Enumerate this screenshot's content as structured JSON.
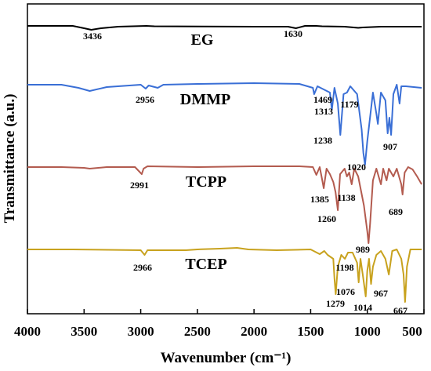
{
  "chart_data": {
    "type": "line",
    "xlabel": "Wavenumber (cm⁻¹)",
    "ylabel": "Transmittance (a.u.)",
    "xlim": [
      4000,
      500
    ],
    "x_reversed": true,
    "x_ticks": [
      4000,
      3500,
      3000,
      2500,
      2000,
      1500,
      1000,
      500
    ],
    "y_ticks": "none",
    "grid": false,
    "series": [
      {
        "name": "EG",
        "color": "#000000",
        "points": [
          [
            4000,
            33
          ],
          [
            3600,
            33
          ],
          [
            3500,
            36
          ],
          [
            3436,
            38
          ],
          [
            3350,
            36
          ],
          [
            3200,
            34
          ],
          [
            2950,
            33
          ],
          [
            2880,
            33.5
          ],
          [
            2000,
            34
          ],
          [
            1700,
            34
          ],
          [
            1630,
            36
          ],
          [
            1550,
            33
          ],
          [
            1450,
            33
          ],
          [
            1400,
            33.5
          ],
          [
            1200,
            34
          ],
          [
            1080,
            35.5
          ],
          [
            1040,
            35
          ],
          [
            880,
            34
          ],
          [
            520,
            34
          ]
        ],
        "annotations": [
          {
            "wn": "3436"
          },
          {
            "wn": "1630"
          }
        ]
      },
      {
        "name": "DMMP",
        "color": "#3a6fd6",
        "points": [
          [
            4000,
            108
          ],
          [
            3700,
            108
          ],
          [
            3550,
            112
          ],
          [
            3450,
            116
          ],
          [
            3300,
            111
          ],
          [
            3000,
            108
          ],
          [
            2956,
            113
          ],
          [
            2930,
            109
          ],
          [
            2850,
            112
          ],
          [
            2800,
            108
          ],
          [
            2500,
            107
          ],
          [
            2000,
            106
          ],
          [
            1600,
            107
          ],
          [
            1480,
            112
          ],
          [
            1469,
            120
          ],
          [
            1440,
            110
          ],
          [
            1330,
            118
          ],
          [
            1313,
            140
          ],
          [
            1290,
            112
          ],
          [
            1260,
            132
          ],
          [
            1238,
            172
          ],
          [
            1210,
            120
          ],
          [
            1179,
            118
          ],
          [
            1150,
            110
          ],
          [
            1090,
            120
          ],
          [
            1050,
            165
          ],
          [
            1035,
            195
          ],
          [
            1020,
            210
          ],
          [
            1000,
            180
          ],
          [
            950,
            118
          ],
          [
            920,
            145
          ],
          [
            907,
            158
          ],
          [
            880,
            118
          ],
          [
            840,
            128
          ],
          [
            820,
            170
          ],
          [
            805,
            150
          ],
          [
            790,
            172
          ],
          [
            770,
            120
          ],
          [
            740,
            108
          ],
          [
            715,
            132
          ],
          [
            700,
            110
          ],
          [
            660,
            110
          ],
          [
            520,
            112
          ]
        ],
        "annotations": [
          {
            "wn": "2956"
          },
          {
            "wn": "1469"
          },
          {
            "wn": "1313"
          },
          {
            "wn": "1179"
          },
          {
            "wn": "1238"
          },
          {
            "wn": "907"
          },
          {
            "wn": "1020"
          }
        ]
      },
      {
        "name": "TCPP",
        "color": "#b35b4f",
        "points": [
          [
            4000,
            213
          ],
          [
            3700,
            213
          ],
          [
            3500,
            214
          ],
          [
            3450,
            215
          ],
          [
            3300,
            213
          ],
          [
            3050,
            213
          ],
          [
            2991,
            222
          ],
          [
            2975,
            215
          ],
          [
            2940,
            212
          ],
          [
            2500,
            213
          ],
          [
            2000,
            212
          ],
          [
            1600,
            212
          ],
          [
            1480,
            213
          ],
          [
            1450,
            223
          ],
          [
            1420,
            213
          ],
          [
            1400,
            228
          ],
          [
            1385,
            240
          ],
          [
            1360,
            215
          ],
          [
            1330,
            222
          ],
          [
            1300,
            232
          ],
          [
            1280,
            245
          ],
          [
            1260,
            268
          ],
          [
            1240,
            222
          ],
          [
            1200,
            215
          ],
          [
            1180,
            225
          ],
          [
            1160,
            220
          ],
          [
            1138,
            235
          ],
          [
            1115,
            215
          ],
          [
            1080,
            225
          ],
          [
            1030,
            262
          ],
          [
            1000,
            295
          ],
          [
            989,
            310
          ],
          [
            975,
            285
          ],
          [
            950,
            230
          ],
          [
            920,
            215
          ],
          [
            880,
            235
          ],
          [
            860,
            215
          ],
          [
            830,
            230
          ],
          [
            810,
            215
          ],
          [
            770,
            225
          ],
          [
            740,
            215
          ],
          [
            700,
            235
          ],
          [
            689,
            248
          ],
          [
            670,
            220
          ],
          [
            640,
            213
          ],
          [
            600,
            216
          ],
          [
            560,
            225
          ],
          [
            520,
            235
          ]
        ],
        "annotations": [
          {
            "wn": "2991"
          },
          {
            "wn": "1385"
          },
          {
            "wn": "1260"
          },
          {
            "wn": "1138"
          },
          {
            "wn": "689"
          },
          {
            "wn": "989"
          }
        ]
      },
      {
        "name": "TCEP",
        "color": "#c8a21e",
        "points": [
          [
            4000,
            318
          ],
          [
            3600,
            318
          ],
          [
            3000,
            319
          ],
          [
            2966,
            325
          ],
          [
            2940,
            319
          ],
          [
            2600,
            319
          ],
          [
            2500,
            318
          ],
          [
            2300,
            317
          ],
          [
            2150,
            316
          ],
          [
            2050,
            318
          ],
          [
            1800,
            319
          ],
          [
            1500,
            318
          ],
          [
            1420,
            324
          ],
          [
            1380,
            320
          ],
          [
            1350,
            325
          ],
          [
            1300,
            330
          ],
          [
            1290,
            355
          ],
          [
            1279,
            375
          ],
          [
            1260,
            340
          ],
          [
            1230,
            325
          ],
          [
            1198,
            330
          ],
          [
            1170,
            322
          ],
          [
            1130,
            322
          ],
          [
            1090,
            335
          ],
          [
            1076,
            360
          ],
          [
            1060,
            330
          ],
          [
            1040,
            350
          ],
          [
            1014,
            378
          ],
          [
            1000,
            345
          ],
          [
            985,
            330
          ],
          [
            967,
            362
          ],
          [
            950,
            340
          ],
          [
            920,
            325
          ],
          [
            880,
            320
          ],
          [
            840,
            330
          ],
          [
            810,
            350
          ],
          [
            780,
            320
          ],
          [
            740,
            318
          ],
          [
            700,
            330
          ],
          [
            680,
            350
          ],
          [
            667,
            385
          ],
          [
            650,
            340
          ],
          [
            620,
            318
          ],
          [
            520,
            318
          ]
        ],
        "annotations": [
          {
            "wn": "2966"
          },
          {
            "wn": "1198"
          },
          {
            "wn": "1279"
          },
          {
            "wn": "1076"
          },
          {
            "wn": "967"
          },
          {
            "wn": "1014"
          },
          {
            "wn": "667"
          }
        ]
      }
    ]
  }
}
